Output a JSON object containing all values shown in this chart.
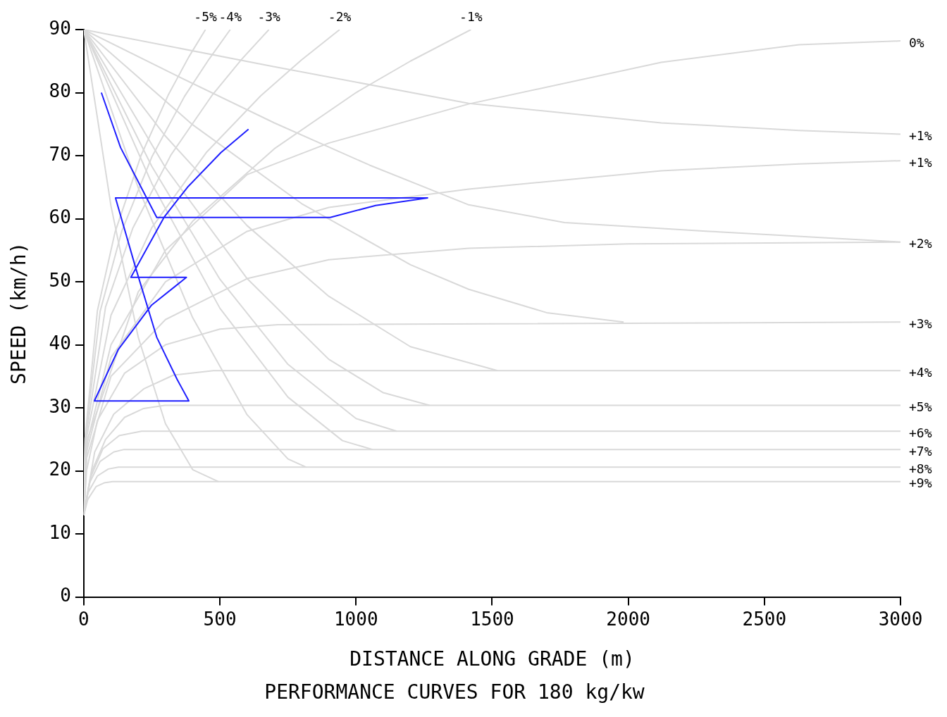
{
  "chart_data": {
    "type": "line",
    "title": "PERFORMANCE CURVES FOR 180 kg/kw",
    "xlabel": "DISTANCE ALONG GRADE (m)",
    "ylabel": "SPEED (km/h)",
    "xlim": [
      0,
      3000
    ],
    "xticks": [
      0,
      500,
      1000,
      1500,
      2000,
      2500,
      3000
    ],
    "ylim": [
      0,
      90
    ],
    "yticks": [
      0,
      10,
      20,
      30,
      40,
      50,
      60,
      70,
      80,
      90
    ],
    "marker": "none",
    "line_style": "solid",
    "legend": false,
    "series": [
      {
        "color": "#1f1fff",
        "x": [
          64.6,
          135,
          268,
          905,
          1072,
          1263,
          116.5,
          192,
          268,
          343,
          386,
          39,
          126,
          249,
          377,
          173,
          296,
          381,
          504,
          605
        ],
        "values": [
          80,
          71.3,
          60.2,
          60.2,
          62.1,
          63.3,
          63.3,
          52,
          41.2,
          34.5,
          31.1,
          31.1,
          39.2,
          46.3,
          50.7,
          50.7,
          60.3,
          65,
          70.5,
          74.2
        ]
      },
      {
        "color": "#d9d9d9",
        "x": [
          0,
          700,
          1414,
          2121,
          2627,
          3000
        ],
        "values": [
          90,
          84.1,
          78.3,
          75.2,
          74.0,
          73.4
        ]
      },
      {
        "color": "#d9d9d9",
        "x": [
          0,
          350,
          700,
          1050,
          1414,
          1766,
          2296,
          3000
        ],
        "values": [
          90,
          82.5,
          75.2,
          68.5,
          62.2,
          59.4,
          58.0,
          56.3
        ]
      },
      {
        "color": "#d9d9d9",
        "x": [
          0,
          400,
          800,
          1200,
          1414,
          1700,
          1983
        ],
        "values": [
          90,
          74.9,
          62.4,
          52.7,
          48.8,
          45.1,
          43.6
        ]
      },
      {
        "color": "#d9d9d9",
        "x": [
          0,
          300,
          600,
          900,
          1200,
          1520
        ],
        "values": [
          90,
          73.1,
          58.9,
          47.7,
          39.7,
          35.9
        ]
      },
      {
        "color": "#d9d9d9",
        "x": [
          0,
          300,
          600,
          900,
          1100,
          1270
        ],
        "values": [
          90,
          68.1,
          50.5,
          37.7,
          32.4,
          30.4
        ]
      },
      {
        "color": "#d9d9d9",
        "x": [
          0,
          250,
          500,
          750,
          1000,
          1150
        ],
        "values": [
          90,
          68.3,
          50.4,
          36.9,
          28.3,
          26.3
        ]
      },
      {
        "color": "#d9d9d9",
        "x": [
          0,
          250,
          500,
          750,
          950,
          1060
        ],
        "values": [
          90,
          65.6,
          45.8,
          31.7,
          24.8,
          23.4
        ]
      },
      {
        "color": "#d9d9d9",
        "x": [
          0,
          200,
          400,
          600,
          750,
          816
        ],
        "values": [
          90,
          64.9,
          44.3,
          28.9,
          21.9,
          20.6
        ]
      },
      {
        "color": "#d9d9d9",
        "x": [
          0,
          100,
          200,
          300,
          400,
          495
        ],
        "values": [
          90,
          62.0,
          41.2,
          27.5,
          20.2,
          18.3
        ]
      },
      {
        "color": "#d9d9d9",
        "x": [
          0,
          4.5,
          50,
          115,
          210,
          310,
          385,
          447
        ],
        "values": [
          13,
          25.1,
          45.4,
          57.9,
          70.0,
          79.6,
          85.6,
          90
        ]
      },
      {
        "color": "#d9d9d9",
        "x": [
          0,
          5.4,
          60,
          140,
          250,
          370,
          460,
          538
        ],
        "values": [
          13,
          25.1,
          45.3,
          58.1,
          69.8,
          79.4,
          85.3,
          90
        ]
      },
      {
        "color": "#d9d9d9",
        "x": [
          0,
          6.8,
          80,
          180,
          320,
          470,
          580,
          680
        ],
        "values": [
          13,
          25.1,
          46.0,
          58.5,
          70.1,
          79.5,
          85.3,
          90
        ]
      },
      {
        "color": "#d9d9d9",
        "x": [
          0,
          9.4,
          100,
          250,
          450,
          650,
          800,
          940
        ],
        "values": [
          13,
          25.1,
          44.7,
          58.6,
          70.5,
          79.5,
          85.2,
          90
        ]
      },
      {
        "color": "#d9d9d9",
        "x": [
          0,
          14,
          200,
          400,
          700,
          1000,
          1200,
          1422
        ],
        "values": [
          13,
          25.1,
          48.4,
          59.6,
          71.1,
          80.0,
          85.0,
          90
        ]
      },
      {
        "color": "#d9d9d9",
        "x": [
          0,
          10,
          100,
          300,
          600,
          900,
          1414,
          2121,
          2627,
          3000
        ],
        "values": [
          13,
          24,
          40,
          55,
          67,
          72,
          78.2,
          84.8,
          87.6,
          88.2
        ]
      },
      {
        "color": "#d9d9d9",
        "x": [
          0,
          10,
          100,
          300,
          600,
          900,
          1414,
          2121,
          2627,
          3000
        ],
        "values": [
          13,
          23,
          38,
          50,
          58,
          61.8,
          64.7,
          67.6,
          68.7,
          69.2
        ]
      },
      {
        "color": "#d9d9d9",
        "x": [
          0,
          10,
          100,
          300,
          600,
          900,
          1414,
          2000,
          3000
        ],
        "values": [
          13,
          22,
          35,
          44,
          50.5,
          53.5,
          55.3,
          56.0,
          56.3
        ]
      },
      {
        "color": "#d9d9d9",
        "x": [
          0,
          10,
          50,
          150,
          300,
          500,
          712,
          3000
        ],
        "values": [
          13,
          20,
          28,
          35.5,
          40,
          42.5,
          43.2,
          43.6
        ]
      },
      {
        "color": "#d9d9d9",
        "x": [
          0,
          40,
          110,
          220,
          330,
          476,
          3000
        ],
        "values": [
          13,
          23,
          29,
          33,
          35.2,
          35.9,
          35.9
        ]
      },
      {
        "color": "#d9d9d9",
        "x": [
          0,
          30,
          80,
          150,
          220,
          297,
          3000
        ],
        "values": [
          13,
          20,
          25,
          28.5,
          29.9,
          30.4,
          30.4
        ]
      },
      {
        "color": "#d9d9d9",
        "x": [
          0,
          25,
          70,
          130,
          212,
          3000
        ],
        "values": [
          13,
          19,
          23.5,
          25.6,
          26.3,
          26.3
        ]
      },
      {
        "color": "#d9d9d9",
        "x": [
          0,
          20,
          60,
          110,
          148,
          3000
        ],
        "values": [
          13,
          18,
          21.5,
          23,
          23.4,
          23.4
        ]
      },
      {
        "color": "#d9d9d9",
        "x": [
          0,
          15,
          50,
          90,
          127,
          3000
        ],
        "values": [
          13,
          16.5,
          19.2,
          20.3,
          20.6,
          20.6
        ]
      },
      {
        "color": "#d9d9d9",
        "x": [
          0,
          15,
          45,
          75,
          106,
          3000
        ],
        "values": [
          13,
          15.5,
          17.5,
          18.1,
          18.3,
          18.3
        ]
      }
    ],
    "annotations": [
      {
        "text": "-5%",
        "x": 447,
        "y": 90
      },
      {
        "text": "-4%",
        "x": 538,
        "y": 90
      },
      {
        "text": "-3%",
        "x": 680,
        "y": 90
      },
      {
        "text": "-2%",
        "x": 940,
        "y": 90
      },
      {
        "text": "-1%",
        "x": 1422,
        "y": 90
      },
      {
        "text": "0%",
        "x": 3000,
        "y": 88.2
      },
      {
        "text": "+1%",
        "x": 3000,
        "y": 73.4
      },
      {
        "text": "+1%",
        "x": 3000,
        "y": 69.2
      },
      {
        "text": "+2%",
        "x": 3000,
        "y": 56.3
      },
      {
        "text": "+3%",
        "x": 3000,
        "y": 43.6
      },
      {
        "text": "+4%",
        "x": 3000,
        "y": 35.9
      },
      {
        "text": "+5%",
        "x": 3000,
        "y": 30.4
      },
      {
        "text": "+6%",
        "x": 3000,
        "y": 26.3
      },
      {
        "text": "+7%",
        "x": 3000,
        "y": 23.4
      },
      {
        "text": "+8%",
        "x": 3000,
        "y": 20.6
      },
      {
        "text": "+9%",
        "x": 3000,
        "y": 18.3
      }
    ]
  }
}
